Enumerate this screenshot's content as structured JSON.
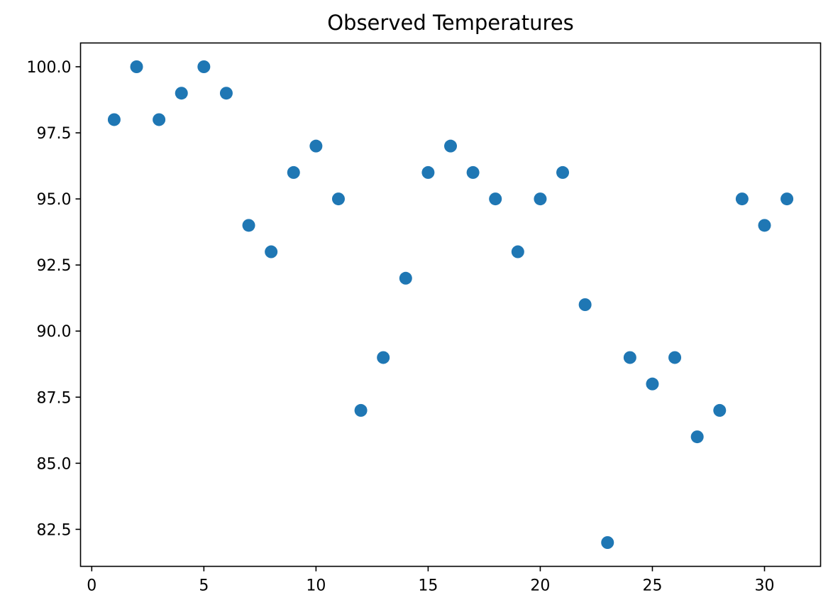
{
  "chart_data": {
    "type": "scatter",
    "title": "Observed Temperatures",
    "xlabel": "",
    "ylabel": "",
    "xlim": [
      -0.5,
      32.5
    ],
    "ylim": [
      81.1,
      100.9
    ],
    "x_ticks": [
      0,
      5,
      10,
      15,
      20,
      25,
      30
    ],
    "x_tick_labels": [
      "0",
      "5",
      "10",
      "15",
      "20",
      "25",
      "30"
    ],
    "y_ticks": [
      82.5,
      85.0,
      87.5,
      90.0,
      92.5,
      95.0,
      97.5,
      100.0
    ],
    "y_tick_labels": [
      "82.5",
      "85.0",
      "87.5",
      "90.0",
      "92.5",
      "95.0",
      "97.5",
      "100.0"
    ],
    "grid": false,
    "legend": false,
    "series": [
      {
        "color": "#1f77b4",
        "x": [
          1,
          2,
          3,
          4,
          5,
          6,
          7,
          8,
          9,
          10,
          11,
          12,
          13,
          14,
          15,
          16,
          17,
          18,
          19,
          20,
          21,
          22,
          23,
          24,
          25,
          26,
          27,
          28,
          29,
          30,
          31
        ],
        "y": [
          98,
          100,
          98,
          99,
          100,
          99,
          94,
          93,
          96,
          97,
          95,
          87,
          89,
          92,
          96,
          97,
          96,
          95,
          93,
          95,
          96,
          91,
          82,
          89,
          88,
          89,
          86,
          87,
          95,
          94,
          95
        ]
      }
    ]
  }
}
